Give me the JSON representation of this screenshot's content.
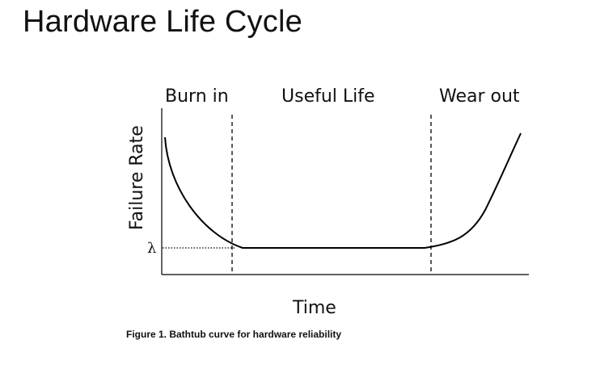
{
  "slide": {
    "title": "Hardware Life Cycle"
  },
  "figure": {
    "phases": [
      "Burn in",
      "Useful Life",
      "Wear out"
    ],
    "y_axis_label": "Failure Rate",
    "x_axis_label": "Time",
    "lambda_symbol": "λ",
    "caption": "Figure 1. Bathtub curve for hardware reliability"
  },
  "colors": {
    "line": "#000000",
    "text": "#111111"
  }
}
